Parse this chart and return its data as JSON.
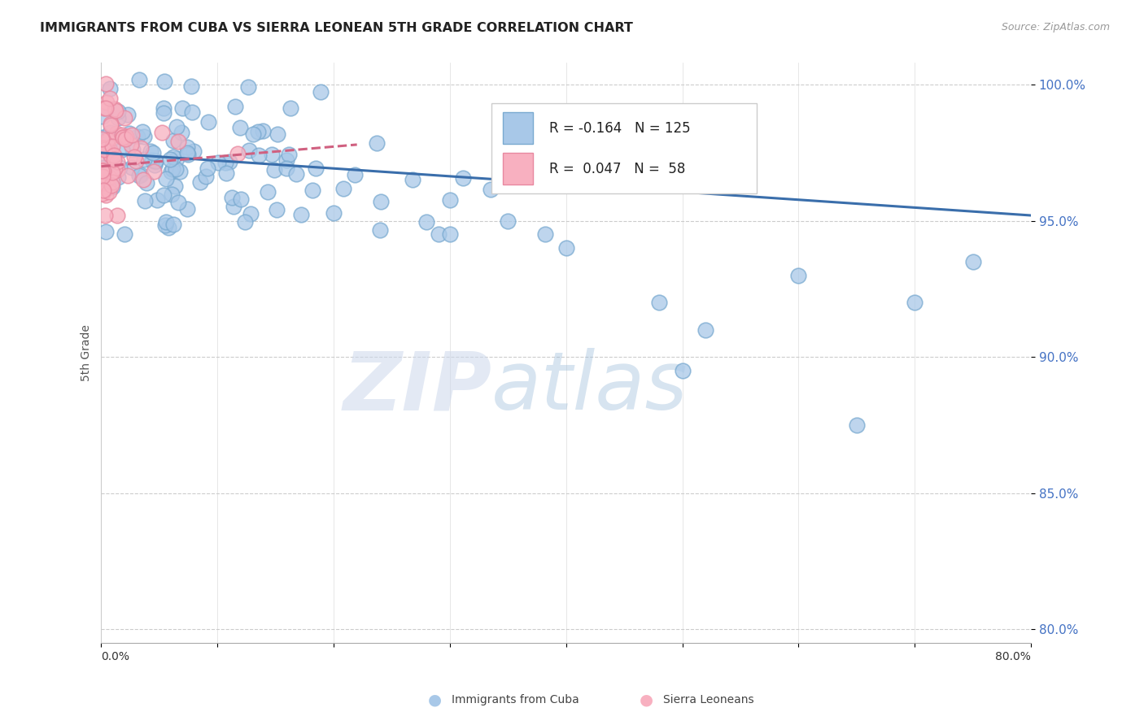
{
  "title": "IMMIGRANTS FROM CUBA VS SIERRA LEONEAN 5TH GRADE CORRELATION CHART",
  "source": "Source: ZipAtlas.com",
  "ylabel": "5th Grade",
  "yticks": [
    80.0,
    85.0,
    90.0,
    95.0,
    100.0
  ],
  "xlim": [
    0.0,
    0.8
  ],
  "ylim": [
    0.795,
    1.008
  ],
  "cuba_r": -0.164,
  "cuba_n": 125,
  "sierra_r": 0.047,
  "sierra_n": 58,
  "cuba_color": "#a8c8e8",
  "cuba_edge": "#7aaad0",
  "sierra_color": "#f8b0c0",
  "sierra_edge": "#e888a0",
  "cuba_line_color": "#3a6eab",
  "sierra_line_color": "#d06080",
  "cuba_line_y0": 0.975,
  "cuba_line_y1": 0.952,
  "sierra_line_x0": 0.0,
  "sierra_line_x1": 0.22,
  "sierra_line_y0": 0.97,
  "sierra_line_y1": 0.978
}
